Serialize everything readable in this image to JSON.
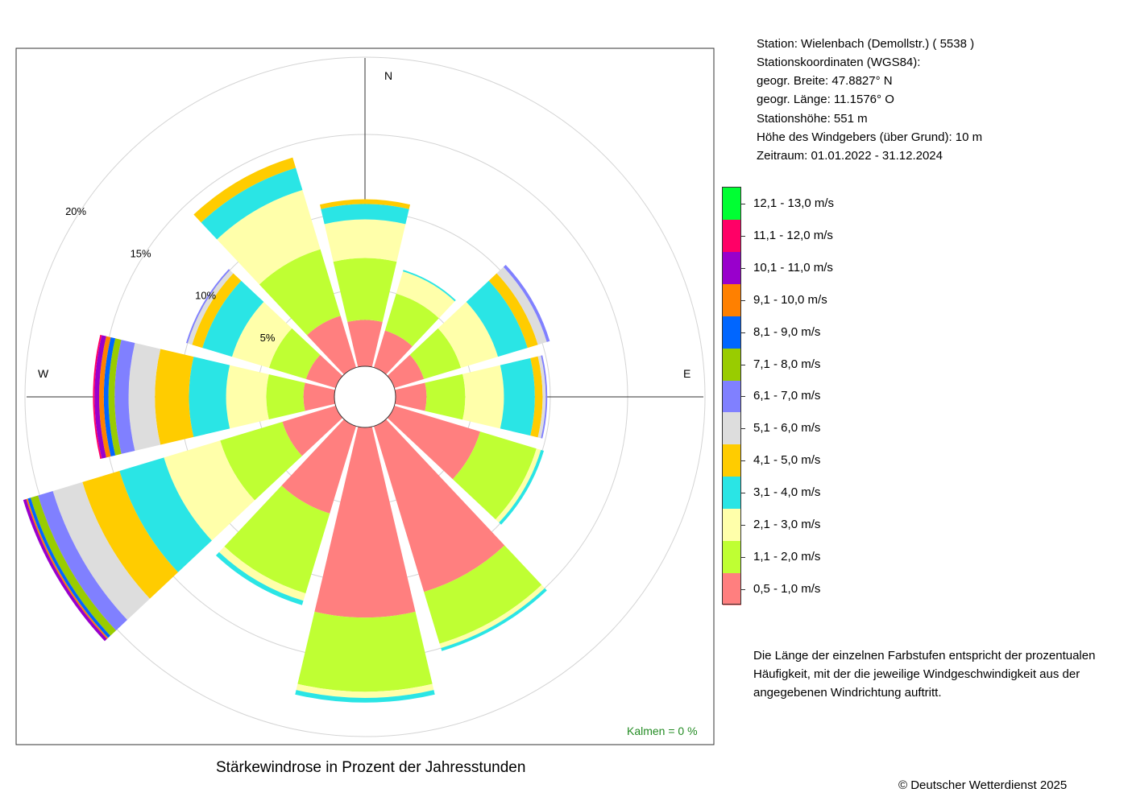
{
  "header": {
    "station": "Station:  Wielenbach (Demollstr.)  ( 5538 )",
    "coords_title": "Stationskoordinaten (WGS84):",
    "latitude": "geogr. Breite: 47.8827° N",
    "longitude": "geogr. Länge: 11.1576° O",
    "elevation": "Stationshöhe: 551 m",
    "sensor_height": "Höhe des Windgebers (über Grund): 10 m",
    "period": "Zeitraum: 01.01.2022 - 31.12.2024"
  },
  "note": {
    "line1": "Die Länge der einzelnen Farbstufen entspricht der prozentualen",
    "line2": "Häufigkeit, mit der die jeweilige Windgeschwindigkeit aus der",
    "line3": "angegebenen Windrichtung auftritt."
  },
  "caption": "Stärkewindrose in Prozent der Jahresstunden",
  "copyright": "© Deutscher Wetterdienst  2025",
  "chart_data": {
    "type": "polar-stacked-bar",
    "title": "Stärkewindrose in Prozent der Jahresstunden",
    "calm": "Kalmen  =  0 %",
    "compass": {
      "N": "N",
      "E": "E",
      "W": "W"
    },
    "radial_ticks": [
      "5%",
      "10%",
      "15%",
      "20%"
    ],
    "radial_tick_values": [
      5,
      10,
      15,
      20
    ],
    "grid": true,
    "legend_placement": "right",
    "directions_deg": [
      0,
      30,
      60,
      90,
      120,
      150,
      180,
      210,
      240,
      270,
      300,
      330
    ],
    "classes": [
      {
        "label": "0,5 - 1,0 m/s",
        "color": "#FF7F7F"
      },
      {
        "label": "1,1 - 2,0 m/s",
        "color": "#BFFF33"
      },
      {
        "label": "2,1 - 3,0 m/s",
        "color": "#FFFFAA"
      },
      {
        "label": "3,1 - 4,0 m/s",
        "color": "#2AE5E5"
      },
      {
        "label": "4,1 - 5,0 m/s",
        "color": "#FFCC00"
      },
      {
        "label": "5,1 - 6,0 m/s",
        "color": "#DDDDDD"
      },
      {
        "label": "6,1 - 7,0 m/s",
        "color": "#8080FF"
      },
      {
        "label": "7,1 - 8,0 m/s",
        "color": "#99CC00"
      },
      {
        "label": "8,1 - 9,0 m/s",
        "color": "#0066FF"
      },
      {
        "label": "9,1 - 10,0 m/s",
        "color": "#FF8000"
      },
      {
        "label": "10,1 - 11,0 m/s",
        "color": "#9900CC"
      },
      {
        "label": "11,1 - 12,0 m/s",
        "color": "#FF0066"
      },
      {
        "label": "12,1 - 13,0 m/s",
        "color": "#00FF33"
      }
    ],
    "series_by_direction": [
      [
        3.0,
        4.0,
        2.5,
        1.0,
        0.3,
        0,
        0,
        0,
        0,
        0,
        0,
        0,
        0
      ],
      [
        2.5,
        2.5,
        1.5,
        0.1,
        0,
        0,
        0,
        0,
        0,
        0,
        0,
        0,
        0
      ],
      [
        2.0,
        2.5,
        2.5,
        2.0,
        0.7,
        0.6,
        0.2,
        0,
        0,
        0,
        0,
        0,
        0
      ],
      [
        2.0,
        2.5,
        2.5,
        2.0,
        0.5,
        0.2,
        0.1,
        0,
        0,
        0,
        0,
        0,
        0
      ],
      [
        5.8,
        3.8,
        0.3,
        0.2,
        0,
        0,
        0,
        0,
        0,
        0,
        0,
        0,
        0
      ],
      [
        11.2,
        3.5,
        0.3,
        0.2,
        0,
        0,
        0,
        0,
        0,
        0,
        0,
        0,
        0
      ],
      [
        12.3,
        4.8,
        0.4,
        0.3,
        0,
        0,
        0,
        0,
        0,
        0,
        0,
        0,
        0
      ],
      [
        5.9,
        5.4,
        0.5,
        0.3,
        0,
        0,
        0,
        0,
        0,
        0,
        0,
        0,
        0
      ],
      [
        3.6,
        4.2,
        3.8,
        3.0,
        2.5,
        2.0,
        1.0,
        0.5,
        0.2,
        0.1,
        0.2,
        0,
        0
      ],
      [
        2.0,
        2.4,
        2.6,
        2.4,
        2.2,
        1.7,
        0.9,
        0.4,
        0.3,
        0.3,
        0.3,
        0.1,
        0
      ],
      [
        2.0,
        2.5,
        2.5,
        2.0,
        0.7,
        0.3,
        0.1,
        0,
        0,
        0,
        0,
        0,
        0
      ],
      [
        3.5,
        4.5,
        4.0,
        1.5,
        0.7,
        0,
        0,
        0,
        0,
        0,
        0,
        0,
        0
      ]
    ]
  }
}
